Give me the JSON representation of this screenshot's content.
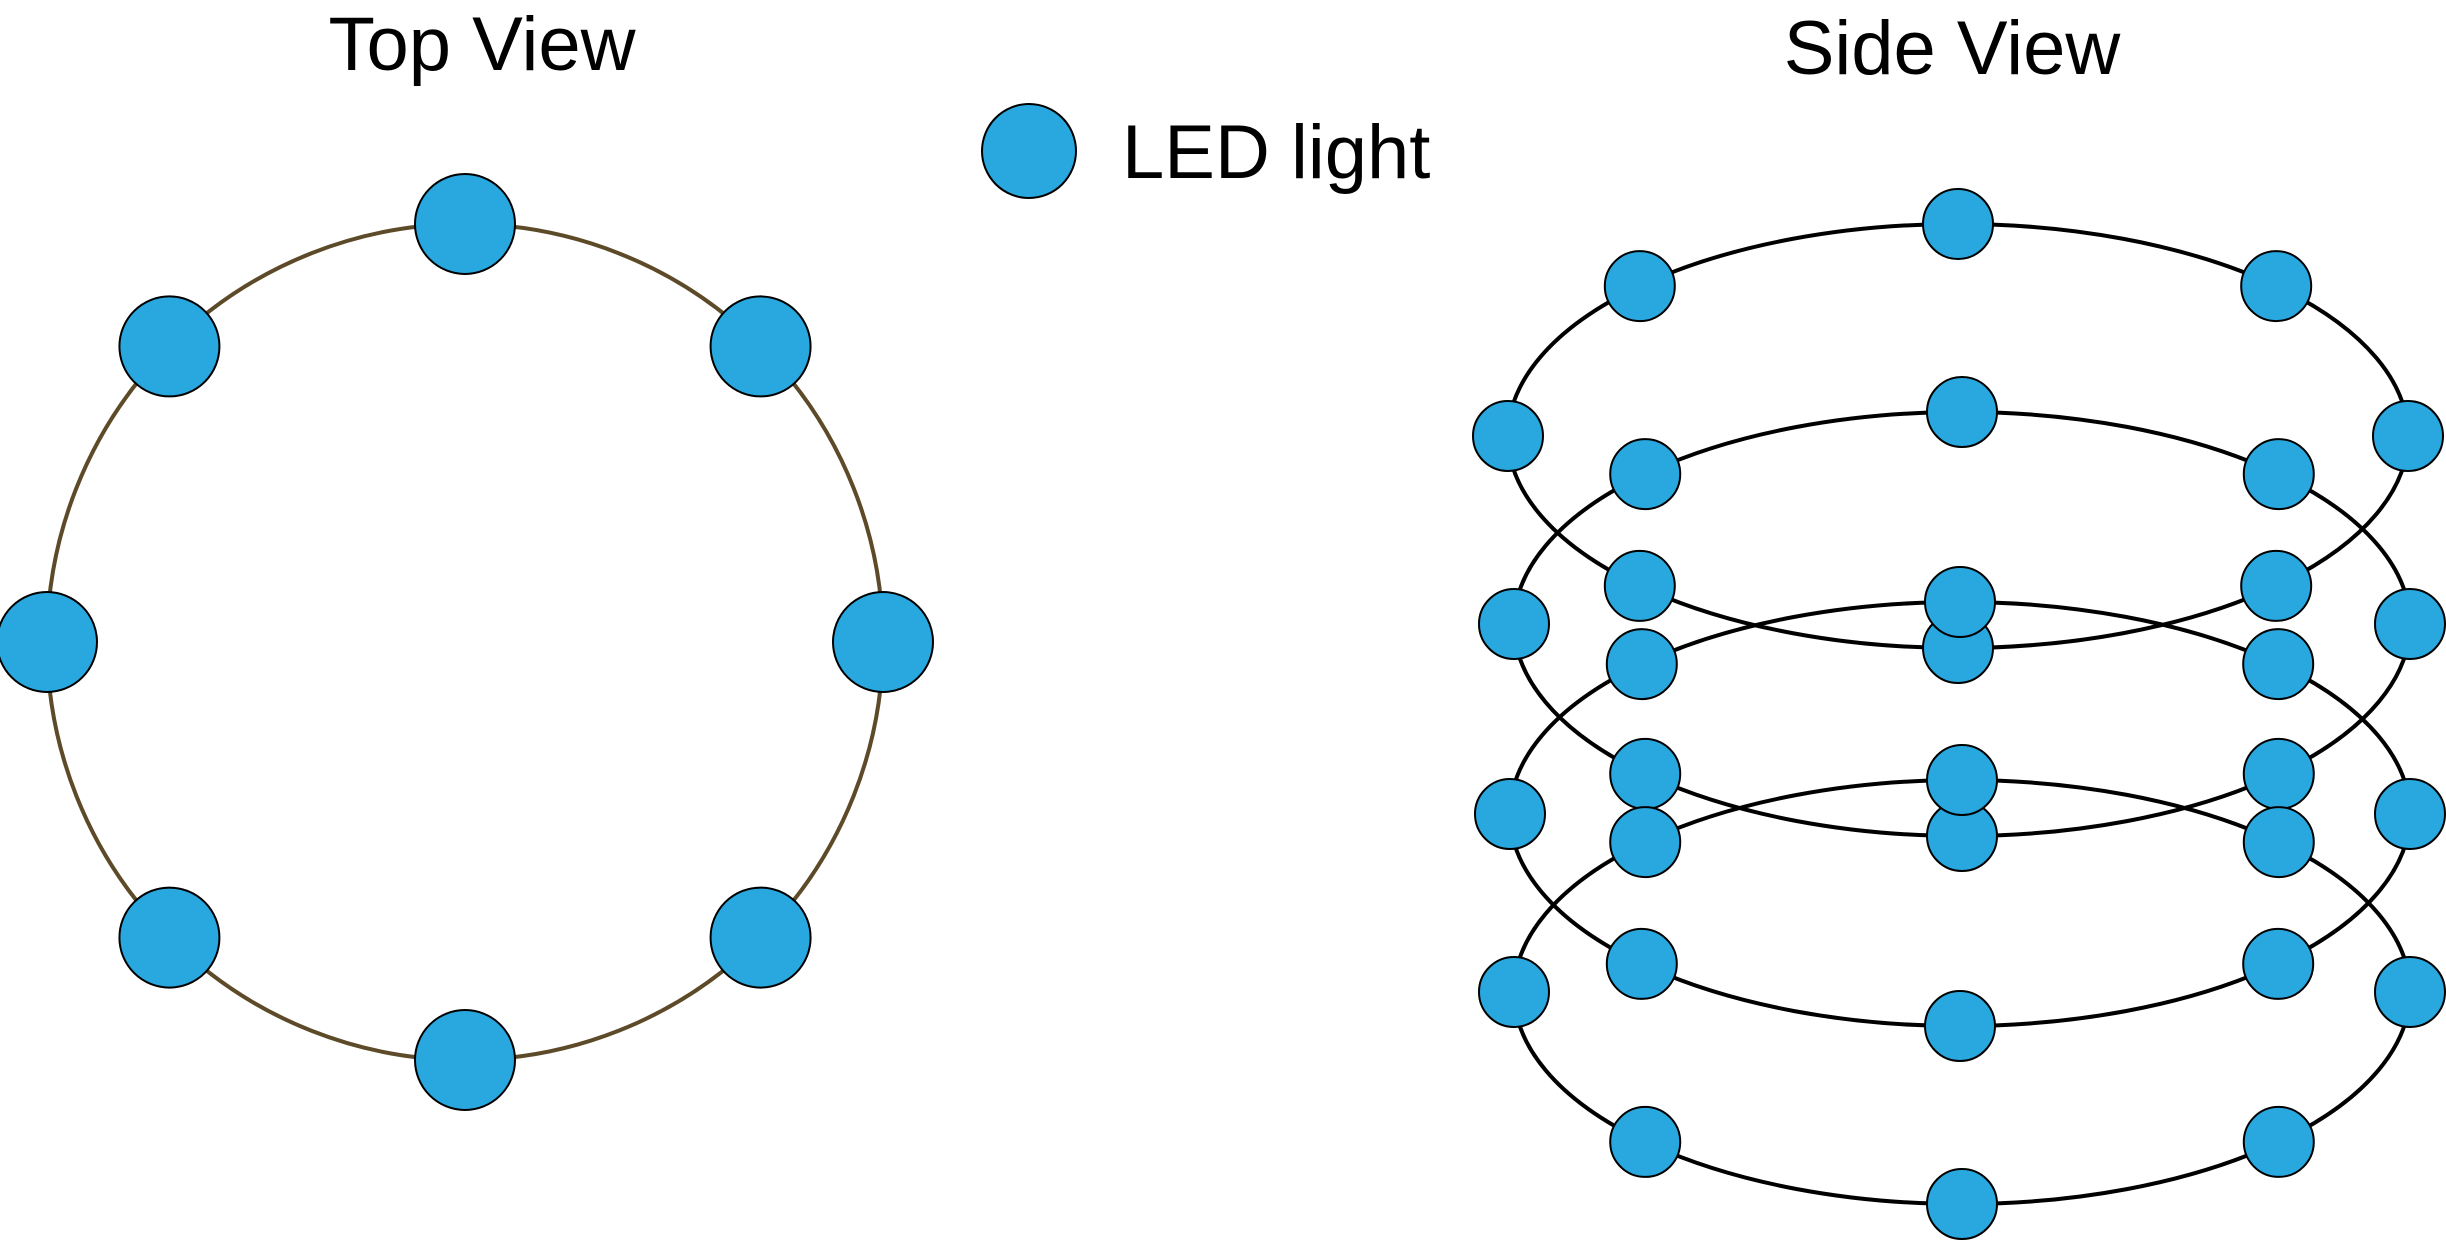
{
  "panels": {
    "top_view": {
      "title": "Top View"
    },
    "side_view": {
      "title": "Side View"
    }
  },
  "legend": {
    "label": "LED light"
  },
  "colors": {
    "led_fill": "#29a8e0",
    "led_stroke": "#000000",
    "top_ring_stroke": "#5c4a28",
    "side_ring_stroke": "#000000",
    "background": "#ffffff"
  },
  "diagram": {
    "top_view_led_count": 8,
    "side_view_ring_count": 4,
    "side_view_leds_per_ring": 8
  }
}
